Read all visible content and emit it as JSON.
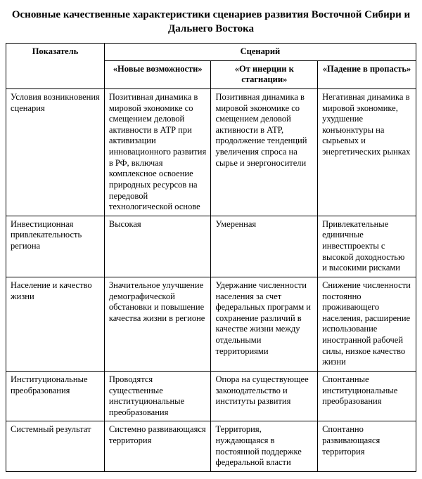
{
  "title": "Основные качественные характеристики сценариев развития Восточной Сибири и Дальнего Востока",
  "header": {
    "indicator": "Показатель",
    "scenario_group": "Сценарий",
    "scenarios": [
      "«Новые возможности»",
      "«От инерции к стагнации»",
      "«Падение в пропасть»"
    ]
  },
  "rows": [
    {
      "indicator": "Условия возникновения сценария",
      "s1": "Позитивная динамика в мировой экономике со смещением деловой активности в АТР при активизации инновационного развития в РФ, включая комплексное освоение природных ресурсов на передовой технологической основе",
      "s2": "Позитивная динамика в мировой экономике со смещением деловой активности в АТР, продолжение тенденций увеличения спроса на сырье и энергоносители",
      "s3": "Негативная динамика в мировой экономике, ухудшение конъюнктуры на сырьевых и энергетических рынках"
    },
    {
      "indicator": "Инвестиционная привлекательность региона",
      "s1": "Высокая",
      "s2": "Умеренная",
      "s3": "Привлекательные единичные инвестпроекты с высокой доходностью и высокими рисками"
    },
    {
      "indicator": "Население и качество жизни",
      "s1": "Значительное улучшение демографической обстановки и повышение качества жизни в регионе",
      "s2": "Удержание численности населения за счет федеральных программ и сохранение различий в качестве жизни между отдельными территориями",
      "s3": "Снижение численности постоянно проживающего населения, расширение использование иностранной рабочей силы, низкое качество жизни"
    },
    {
      "indicator": "Институциональные преобразования",
      "s1": "Проводятся существенные институциональные преобразования",
      "s2": "Опора на существующее законодательство и институты развития",
      "s3": "Спонтанные институциональные преобразования"
    },
    {
      "indicator": "Системный результат",
      "s1": "Системно развивающаяся территория",
      "s2": "Территория, нуждающаяся в постоянной поддержке федеральной власти",
      "s3": "Спонтанно развивающаяся территория"
    }
  ]
}
